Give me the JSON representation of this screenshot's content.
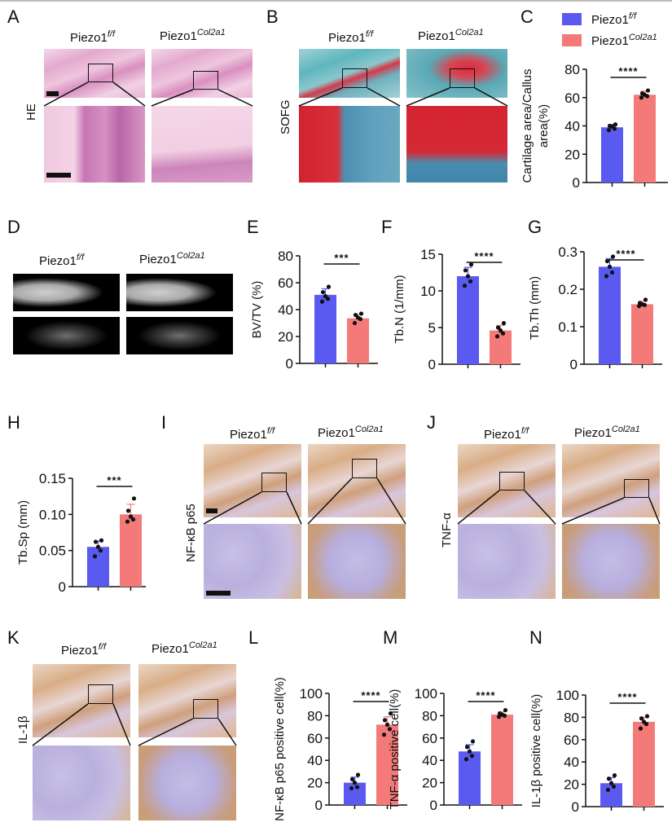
{
  "figure": {
    "panel_labels": [
      "A",
      "B",
      "C",
      "D",
      "E",
      "F",
      "G",
      "H",
      "I",
      "J",
      "K",
      "L",
      "M",
      "N"
    ],
    "genotypes": {
      "control": {
        "base": "Piezo1",
        "sup": "f/f"
      },
      "mutant": {
        "base": "Piezo1",
        "sup": "Col2a1"
      }
    },
    "row_labels": {
      "A": "HE",
      "B": "SOFG",
      "I": "NF-κB p65",
      "J": "TNF-α",
      "K": "IL-1β"
    },
    "colors": {
      "control": "#5a5af0",
      "mutant": "#f47a7a",
      "axis": "#111111"
    },
    "legend": [
      {
        "label": "Piezo1",
        "sup": "f/f",
        "color": "#5a5af0"
      },
      {
        "label": "Piezo1",
        "sup": "Col2a1",
        "color": "#f47a7a"
      }
    ]
  },
  "chart_data": [
    {
      "panel": "C",
      "type": "bar",
      "categories": [
        "Piezo1f/f",
        "Piezo1Col2a1"
      ],
      "values": [
        39,
        62
      ],
      "errors": [
        2,
        2.5
      ],
      "points": [
        [
          37,
          38,
          39.5,
          40,
          41
        ],
        [
          60,
          61,
          62,
          63,
          65
        ]
      ],
      "ylabel": "Cartilage area/Callus area(%)",
      "ylabel_lines": [
        "Cartilage area/Callus",
        "area(%)"
      ],
      "ylim": [
        0,
        80
      ],
      "yticks": [
        "0",
        "20",
        "40",
        "60",
        "80"
      ],
      "significance": "****"
    },
    {
      "panel": "E",
      "type": "bar",
      "categories": [
        "Piezo1f/f",
        "Piezo1Col2a1"
      ],
      "values": [
        51,
        33.5
      ],
      "errors": [
        4.5,
        3
      ],
      "points": [
        [
          46,
          48,
          50,
          53,
          57
        ],
        [
          30,
          33,
          34,
          36,
          37
        ]
      ],
      "ylabel": "BV/TV (%)",
      "ylabel_lines": [
        "BV/TV (%)"
      ],
      "ylim": [
        0,
        80
      ],
      "yticks": [
        "0",
        "20",
        "40",
        "60",
        "80"
      ],
      "significance": "***"
    },
    {
      "panel": "F",
      "type": "bar",
      "categories": [
        "Piezo1f/f",
        "Piezo1Col2a1"
      ],
      "values": [
        12,
        4.6
      ],
      "errors": [
        1.2,
        0.7
      ],
      "points": [
        [
          10.7,
          11.3,
          12,
          12.8,
          13.6
        ],
        [
          3.8,
          4.2,
          4.6,
          5,
          5.6
        ]
      ],
      "ylabel": "Tb.N (1/mm)",
      "ylabel_lines": [
        "Tb.N (1/mm)"
      ],
      "ylim": [
        0,
        15
      ],
      "yticks": [
        "0",
        "5",
        "10",
        "15"
      ],
      "significance": "****"
    },
    {
      "panel": "G",
      "type": "bar",
      "categories": [
        "Piezo1f/f",
        "Piezo1Col2a1"
      ],
      "values": [
        0.26,
        0.16
      ],
      "errors": [
        0.022,
        0.008
      ],
      "points": [
        [
          0.235,
          0.245,
          0.26,
          0.275,
          0.287
        ],
        [
          0.155,
          0.158,
          0.16,
          0.163,
          0.172
        ]
      ],
      "ylabel": "Tb.Th (mm)",
      "ylabel_lines": [
        "Tb.Th (mm)"
      ],
      "ylim": [
        0,
        0.3
      ],
      "yticks": [
        "0",
        "0.1",
        "0.2",
        "0.3"
      ],
      "significance": "****"
    },
    {
      "panel": "H",
      "type": "bar",
      "categories": [
        "Piezo1f/f",
        "Piezo1Col2a1"
      ],
      "values": [
        0.055,
        0.1
      ],
      "errors": [
        0.008,
        0.014
      ],
      "points": [
        [
          0.042,
          0.05,
          0.055,
          0.062,
          0.064
        ],
        [
          0.09,
          0.093,
          0.097,
          0.105,
          0.122
        ]
      ],
      "ylabel": "Tb.Sp (mm)",
      "ylabel_lines": [
        "Tb.Sp (mm)"
      ],
      "ylim": [
        0,
        0.15
      ],
      "yticks": [
        "0",
        "0.05",
        "0.10",
        "0.15"
      ],
      "significance": "***"
    },
    {
      "panel": "L",
      "type": "bar",
      "categories": [
        "Piezo1f/f",
        "Piezo1Col2a1"
      ],
      "values": [
        20,
        72
      ],
      "errors": [
        5,
        7
      ],
      "points": [
        [
          15,
          16,
          20,
          23,
          27
        ],
        [
          63,
          68,
          72,
          76,
          82
        ]
      ],
      "ylabel": "NF-κB p65 positive cell(%)",
      "ylabel_lines": [
        "NF-κB p65 positive cell(%)"
      ],
      "ylim": [
        0,
        100
      ],
      "yticks": [
        "0",
        "20",
        "40",
        "60",
        "80",
        "100"
      ],
      "significance": "****"
    },
    {
      "panel": "M",
      "type": "bar",
      "categories": [
        "Piezo1f/f",
        "Piezo1Col2a1"
      ],
      "values": [
        48,
        81
      ],
      "errors": [
        6,
        2.5
      ],
      "points": [
        [
          41,
          44,
          48,
          52,
          57
        ],
        [
          79,
          80,
          81,
          82,
          85
        ]
      ],
      "ylabel": "TNF-α positive cell(%)",
      "ylabel_lines": [
        "TNF-α positive cell(%)"
      ],
      "ylim": [
        0,
        100
      ],
      "yticks": [
        "0",
        "20",
        "40",
        "60",
        "80",
        "100"
      ],
      "significance": "****"
    },
    {
      "panel": "N",
      "type": "bar",
      "categories": [
        "Piezo1f/f",
        "Piezo1Col2a1"
      ],
      "values": [
        21,
        76
      ],
      "errors": [
        5,
        4
      ],
      "points": [
        [
          15,
          18,
          21,
          25,
          28
        ],
        [
          70,
          74,
          76,
          79,
          81
        ]
      ],
      "ylabel": "IL-1β positive cell(%)",
      "ylabel_lines": [
        "IL-1β positive cell(%)"
      ],
      "ylim": [
        0,
        100
      ],
      "yticks": [
        "0",
        "20",
        "40",
        "60",
        "80",
        "100"
      ],
      "significance": "****"
    }
  ]
}
